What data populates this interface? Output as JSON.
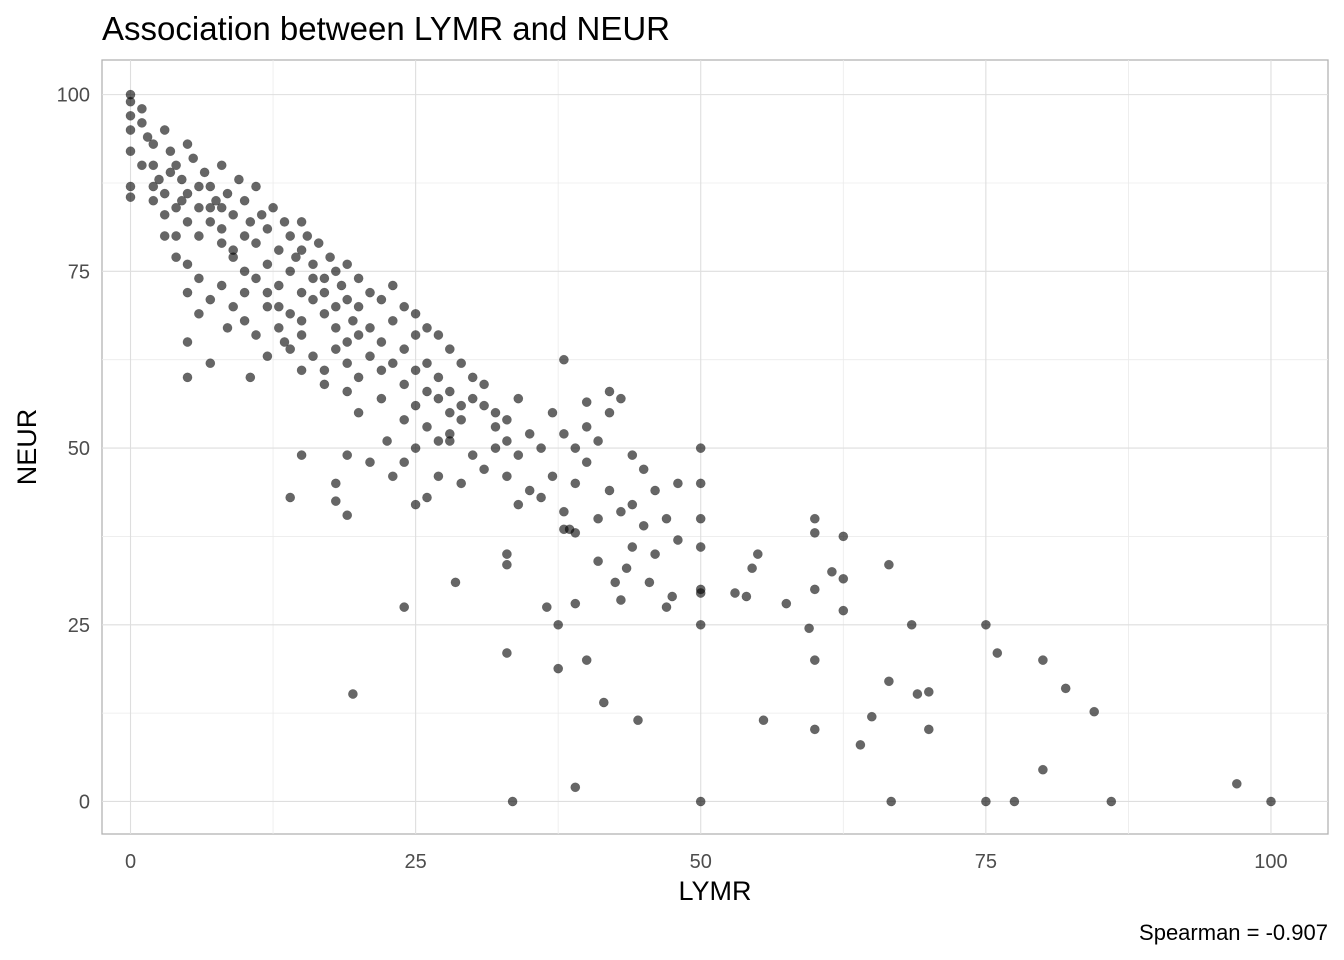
{
  "chart_data": {
    "type": "scatter",
    "title": "Association between LYMR and NEUR",
    "xlabel": "LYMR",
    "ylabel": "NEUR",
    "caption": "Spearman = -0.907",
    "xlim": [
      -2.5,
      105
    ],
    "ylim": [
      -4.6,
      104.9
    ],
    "x_ticks": [
      0,
      25,
      50,
      75,
      100
    ],
    "y_ticks": [
      0,
      25,
      50,
      75,
      100
    ],
    "x_tick_labels": [
      "0",
      "25",
      "50",
      "75",
      "100"
    ],
    "y_tick_labels": [
      "0",
      "25",
      "50",
      "75",
      "100"
    ],
    "grid": true,
    "legend": "none",
    "point_color": "#000000",
    "point_alpha": 0.6,
    "points": [
      [
        0,
        100
      ],
      [
        0,
        99
      ],
      [
        0,
        97
      ],
      [
        0,
        95
      ],
      [
        0,
        92
      ],
      [
        0,
        87
      ],
      [
        0,
        85.5
      ],
      [
        1,
        98
      ],
      [
        1,
        96
      ],
      [
        1.5,
        94
      ],
      [
        2,
        93
      ],
      [
        2,
        90
      ],
      [
        2.5,
        88
      ],
      [
        3,
        95
      ],
      [
        3,
        86
      ],
      [
        3.5,
        92
      ],
      [
        4,
        90
      ],
      [
        4,
        84
      ],
      [
        4.5,
        88
      ],
      [
        5,
        93
      ],
      [
        5,
        86
      ],
      [
        5,
        82
      ],
      [
        5.5,
        91
      ],
      [
        6,
        84
      ],
      [
        6,
        80
      ],
      [
        6.5,
        89
      ],
      [
        7,
        87
      ],
      [
        7,
        82
      ],
      [
        7.5,
        85
      ],
      [
        8,
        90
      ],
      [
        8,
        84
      ],
      [
        8,
        79
      ],
      [
        8.5,
        86
      ],
      [
        9,
        83
      ],
      [
        9,
        77
      ],
      [
        9.5,
        88
      ],
      [
        10,
        85
      ],
      [
        10,
        80
      ],
      [
        10,
        75
      ],
      [
        10.5,
        82
      ],
      [
        11,
        87
      ],
      [
        11,
        79
      ],
      [
        11.5,
        83
      ],
      [
        12,
        81
      ],
      [
        12,
        76
      ],
      [
        12.5,
        84
      ],
      [
        13,
        78
      ],
      [
        13,
        73
      ],
      [
        13.5,
        82
      ],
      [
        14,
        80
      ],
      [
        14,
        75
      ],
      [
        14.5,
        77
      ],
      [
        15,
        82
      ],
      [
        15,
        78
      ],
      [
        15,
        72
      ],
      [
        15.5,
        80
      ],
      [
        16,
        76
      ],
      [
        16,
        71
      ],
      [
        16.5,
        79
      ],
      [
        17,
        74
      ],
      [
        17,
        69
      ],
      [
        17.5,
        77
      ],
      [
        18,
        75
      ],
      [
        18,
        70
      ],
      [
        18.5,
        73
      ],
      [
        19,
        76
      ],
      [
        19,
        71
      ],
      [
        19.5,
        68
      ],
      [
        20,
        74
      ],
      [
        20,
        70
      ],
      [
        21,
        72
      ],
      [
        21,
        67
      ],
      [
        22,
        71
      ],
      [
        22,
        65
      ],
      [
        23,
        73
      ],
      [
        23,
        68
      ],
      [
        24,
        70
      ],
      [
        24,
        64
      ],
      [
        25,
        69
      ],
      [
        25,
        66
      ],
      [
        26,
        67
      ],
      [
        26,
        62
      ],
      [
        27,
        66
      ],
      [
        27,
        60
      ],
      [
        28,
        64
      ],
      [
        28,
        58
      ],
      [
        29,
        62
      ],
      [
        30,
        60
      ],
      [
        3,
        83
      ],
      [
        4,
        80
      ],
      [
        5,
        76
      ],
      [
        6,
        74
      ],
      [
        7,
        71
      ],
      [
        8,
        73
      ],
      [
        9,
        70
      ],
      [
        10,
        68
      ],
      [
        11,
        66
      ],
      [
        12,
        70
      ],
      [
        13,
        67
      ],
      [
        14,
        64
      ],
      [
        15,
        66
      ],
      [
        16,
        63
      ],
      [
        17,
        61
      ],
      [
        18,
        64
      ],
      [
        19,
        62
      ],
      [
        20,
        60
      ],
      [
        2,
        85
      ],
      [
        3,
        80
      ],
      [
        4,
        77
      ],
      [
        5,
        72
      ],
      [
        6,
        69
      ],
      [
        1,
        90
      ],
      [
        2,
        87
      ],
      [
        3.5,
        89
      ],
      [
        4.5,
        85
      ],
      [
        6,
        87
      ],
      [
        7,
        84
      ],
      [
        8,
        81
      ],
      [
        9,
        78
      ],
      [
        10,
        72
      ],
      [
        11,
        74
      ],
      [
        12,
        72
      ],
      [
        13,
        70
      ],
      [
        14,
        69
      ],
      [
        15,
        68
      ],
      [
        16,
        74
      ],
      [
        17,
        72
      ],
      [
        18,
        67
      ],
      [
        19,
        65
      ],
      [
        20,
        66
      ],
      [
        21,
        63
      ],
      [
        22,
        61
      ],
      [
        23,
        62
      ],
      [
        24,
        59
      ],
      [
        25,
        61
      ],
      [
        26,
        58
      ],
      [
        27,
        57
      ],
      [
        28,
        55
      ],
      [
        29,
        56
      ],
      [
        30,
        57
      ],
      [
        31,
        59
      ],
      [
        32,
        55
      ],
      [
        33,
        54
      ],
      [
        34,
        57
      ],
      [
        5,
        65
      ],
      [
        5,
        60
      ],
      [
        7,
        62
      ],
      [
        8.5,
        67
      ],
      [
        10.5,
        60
      ],
      [
        12,
        63
      ],
      [
        13.5,
        65
      ],
      [
        15,
        61
      ],
      [
        17,
        59
      ],
      [
        19,
        58
      ],
      [
        20,
        55
      ],
      [
        22,
        57
      ],
      [
        24,
        54
      ],
      [
        25,
        56
      ],
      [
        26,
        53
      ],
      [
        27,
        51
      ],
      [
        28,
        52
      ],
      [
        29,
        54
      ],
      [
        14,
        43
      ],
      [
        15,
        49
      ],
      [
        18,
        45
      ],
      [
        18,
        42.5
      ],
      [
        19,
        49
      ],
      [
        19,
        40.5
      ],
      [
        21,
        48
      ],
      [
        22.5,
        51
      ],
      [
        23,
        46
      ],
      [
        24,
        48
      ],
      [
        25,
        42
      ],
      [
        25,
        50
      ],
      [
        26,
        43
      ],
      [
        27,
        46
      ],
      [
        28,
        51
      ],
      [
        29,
        45
      ],
      [
        30,
        49
      ],
      [
        31,
        47
      ],
      [
        32,
        50
      ],
      [
        33,
        46
      ],
      [
        34,
        42
      ],
      [
        35,
        44
      ],
      [
        36,
        43
      ],
      [
        37,
        46
      ],
      [
        38,
        41
      ],
      [
        38,
        38.5
      ],
      [
        39,
        38
      ],
      [
        39,
        45
      ],
      [
        40,
        48
      ],
      [
        41,
        40
      ],
      [
        42,
        44
      ],
      [
        43,
        41
      ],
      [
        44,
        42
      ],
      [
        45,
        39
      ],
      [
        46,
        44
      ],
      [
        47,
        40
      ],
      [
        48,
        45
      ],
      [
        31,
        56
      ],
      [
        32,
        53
      ],
      [
        33,
        51
      ],
      [
        34,
        49
      ],
      [
        35,
        52
      ],
      [
        36,
        50
      ],
      [
        37,
        55
      ],
      [
        38,
        52
      ],
      [
        39,
        50
      ],
      [
        40,
        53
      ],
      [
        41,
        51
      ],
      [
        42,
        55
      ],
      [
        42,
        58
      ],
      [
        43,
        57
      ],
      [
        44,
        49
      ],
      [
        45,
        47
      ],
      [
        38,
        62.5
      ],
      [
        40,
        56.5
      ],
      [
        33,
        35
      ],
      [
        33,
        33.5
      ],
      [
        33,
        21
      ],
      [
        36.5,
        27.5
      ],
      [
        37.5,
        25
      ],
      [
        37.5,
        18.8
      ],
      [
        38.5,
        38.5
      ],
      [
        39,
        28
      ],
      [
        40,
        20
      ],
      [
        41,
        34
      ],
      [
        41.5,
        14
      ],
      [
        42.5,
        31
      ],
      [
        43,
        28.5
      ],
      [
        43.5,
        33
      ],
      [
        44,
        36
      ],
      [
        44.5,
        11.5
      ],
      [
        45.5,
        31
      ],
      [
        46,
        35
      ],
      [
        47,
        27.5
      ],
      [
        47.5,
        29
      ],
      [
        48,
        37
      ],
      [
        50,
        50
      ],
      [
        50,
        45
      ],
      [
        50,
        40
      ],
      [
        50,
        36
      ],
      [
        50,
        30
      ],
      [
        50,
        29.5
      ],
      [
        50,
        25
      ],
      [
        50,
        0
      ],
      [
        53,
        29.5
      ],
      [
        54,
        29
      ],
      [
        54.5,
        33
      ],
      [
        55,
        35
      ],
      [
        55.5,
        11.5
      ],
      [
        57.5,
        28
      ],
      [
        59.5,
        24.5
      ],
      [
        60,
        40
      ],
      [
        60,
        38
      ],
      [
        60,
        30
      ],
      [
        60,
        20
      ],
      [
        60,
        10.2
      ],
      [
        61.5,
        32.5
      ],
      [
        62.5,
        37.5
      ],
      [
        62.5,
        31.5
      ],
      [
        62.5,
        27
      ],
      [
        64,
        8
      ],
      [
        65,
        12
      ],
      [
        66.5,
        33.5
      ],
      [
        66.5,
        17
      ],
      [
        66.7,
        0
      ],
      [
        68.5,
        25
      ],
      [
        69,
        15.2
      ],
      [
        70,
        15.5
      ],
      [
        70,
        10.2
      ],
      [
        75,
        25
      ],
      [
        75,
        0
      ],
      [
        76,
        21
      ],
      [
        77.5,
        0
      ],
      [
        80,
        20
      ],
      [
        80,
        4.5
      ],
      [
        82,
        16
      ],
      [
        84.5,
        12.7
      ],
      [
        86,
        0
      ],
      [
        97,
        2.5
      ],
      [
        100,
        0
      ],
      [
        19.5,
        15.2
      ],
      [
        24,
        27.5
      ],
      [
        28.5,
        31
      ],
      [
        33.5,
        0
      ],
      [
        39,
        2
      ]
    ]
  }
}
